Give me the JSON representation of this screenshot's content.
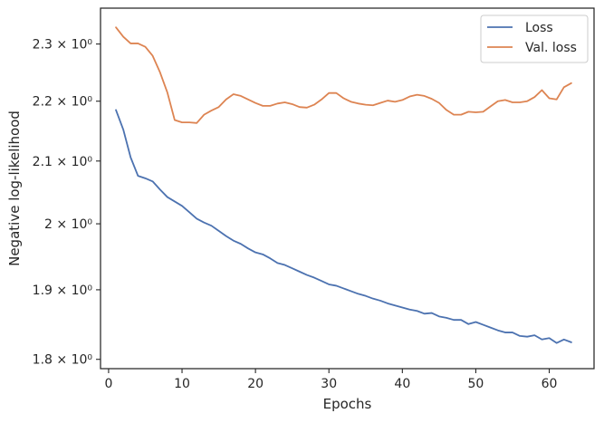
{
  "chart_data": {
    "type": "line",
    "title": "",
    "xlabel": "Epochs",
    "ylabel": "Negative log-likelihood",
    "y_scale": "log",
    "xlim": [
      -1.1,
      66.1
    ],
    "ylim": [
      1.787,
      2.365
    ],
    "grid": false,
    "legend_position": "top-right",
    "x_ticks": [
      0,
      10,
      20,
      30,
      40,
      50,
      60
    ],
    "x_tick_labels": [
      "0",
      "10",
      "20",
      "30",
      "40",
      "50",
      "60"
    ],
    "y_ticks": [
      1.8,
      1.9,
      2.0,
      2.1,
      2.2,
      2.3
    ],
    "y_tick_labels": [
      "1.8 × 10⁰",
      "1.9 × 10⁰",
      "2 × 10⁰",
      "2.1 × 10⁰",
      "2.2 × 10⁰",
      "2.3 × 10⁰"
    ],
    "x": [
      1,
      2,
      3,
      4,
      5,
      6,
      7,
      8,
      9,
      10,
      11,
      12,
      13,
      14,
      15,
      16,
      17,
      18,
      19,
      20,
      21,
      22,
      23,
      24,
      25,
      26,
      27,
      28,
      29,
      30,
      31,
      32,
      33,
      34,
      35,
      36,
      37,
      38,
      39,
      40,
      41,
      42,
      43,
      44,
      45,
      46,
      47,
      48,
      49,
      50,
      51,
      52,
      53,
      54,
      55,
      56,
      57,
      58,
      59,
      60,
      61,
      62,
      63
    ],
    "series": [
      {
        "name": "Loss",
        "color": "#4c72b0",
        "values": [
          2.185,
          2.152,
          2.106,
          2.076,
          2.072,
          2.067,
          2.054,
          2.042,
          2.035,
          2.028,
          2.018,
          2.008,
          2.002,
          1.997,
          1.989,
          1.981,
          1.974,
          1.969,
          1.962,
          1.956,
          1.953,
          1.947,
          1.94,
          1.937,
          1.932,
          1.927,
          1.922,
          1.918,
          1.913,
          1.908,
          1.906,
          1.902,
          1.898,
          1.894,
          1.891,
          1.887,
          1.884,
          1.88,
          1.877,
          1.874,
          1.871,
          1.869,
          1.865,
          1.866,
          1.861,
          1.859,
          1.856,
          1.856,
          1.85,
          1.853,
          1.849,
          1.845,
          1.841,
          1.838,
          1.838,
          1.833,
          1.832,
          1.834,
          1.828,
          1.83,
          1.823,
          1.828,
          1.824
        ]
      },
      {
        "name": "Val. loss",
        "color": "#dd8452",
        "values": [
          2.33,
          2.313,
          2.301,
          2.301,
          2.295,
          2.279,
          2.25,
          2.215,
          2.168,
          2.164,
          2.164,
          2.163,
          2.177,
          2.184,
          2.19,
          2.203,
          2.212,
          2.209,
          2.203,
          2.197,
          2.192,
          2.192,
          2.196,
          2.198,
          2.195,
          2.19,
          2.189,
          2.194,
          2.203,
          2.214,
          2.214,
          2.205,
          2.199,
          2.196,
          2.194,
          2.193,
          2.197,
          2.201,
          2.199,
          2.202,
          2.208,
          2.211,
          2.209,
          2.204,
          2.197,
          2.185,
          2.177,
          2.177,
          2.182,
          2.181,
          2.182,
          2.191,
          2.2,
          2.202,
          2.198,
          2.198,
          2.2,
          2.207,
          2.219,
          2.205,
          2.203,
          2.224,
          2.231
        ]
      }
    ]
  }
}
